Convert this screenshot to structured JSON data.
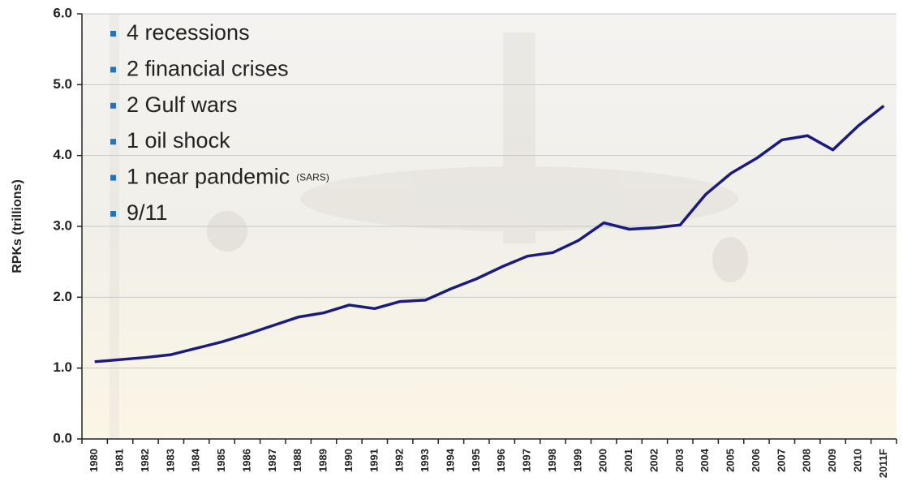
{
  "chart_data": {
    "type": "line",
    "y_label": "RPKs (trillions)",
    "categories": [
      "1980",
      "1981",
      "1982",
      "1983",
      "1984",
      "1985",
      "1986",
      "1987",
      "1988",
      "1989",
      "1990",
      "1991",
      "1992",
      "1993",
      "1994",
      "1995",
      "1996",
      "1997",
      "1998",
      "1999",
      "2000",
      "2001",
      "2002",
      "2003",
      "2004",
      "2005",
      "2006",
      "2007",
      "2008",
      "2009",
      "2010",
      "2011F"
    ],
    "series": [
      {
        "color": "#1b1b7e",
        "values": [
          1.09,
          1.12,
          1.15,
          1.19,
          1.28,
          1.37,
          1.48,
          1.6,
          1.72,
          1.78,
          1.89,
          1.84,
          1.94,
          1.96,
          2.12,
          2.26,
          2.43,
          2.58,
          2.63,
          2.8,
          3.05,
          2.96,
          2.98,
          3.02,
          3.45,
          3.75,
          3.96,
          4.22,
          4.28,
          4.08,
          4.42,
          4.7
        ]
      }
    ],
    "ylim": [
      0,
      6
    ],
    "yticks": [
      {
        "value": 0,
        "label": "0.0"
      },
      {
        "value": 1,
        "label": "1.0"
      },
      {
        "value": 2,
        "label": "2.0"
      },
      {
        "value": 3,
        "label": "3.0"
      },
      {
        "value": 4,
        "label": "4.0"
      },
      {
        "value": 5,
        "label": "5.0"
      },
      {
        "value": 6,
        "label": "6.0"
      }
    ],
    "grid": true,
    "annotations": [
      {
        "text": "4 recessions"
      },
      {
        "text": "2 financial crises"
      },
      {
        "text": "2 Gulf wars"
      },
      {
        "text": "1 oil shock"
      },
      {
        "text": "1 near pandemic",
        "note": "(SARS)"
      },
      {
        "text": "9/11"
      }
    ]
  }
}
